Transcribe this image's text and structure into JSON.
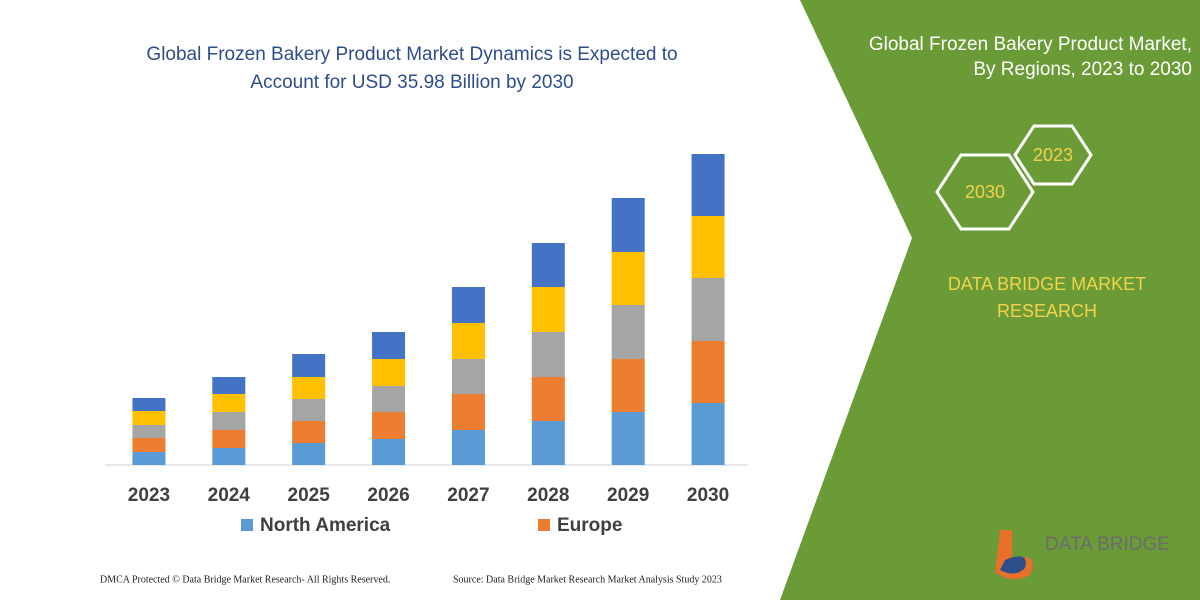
{
  "chart_data": {
    "type": "stacked_bar",
    "title": [
      "Global Frozen Bakery Product Market Dynamics is Expected to",
      "Account for USD 35.98 Billion by 2030"
    ],
    "categories": [
      "2023",
      "2024",
      "2025",
      "2026",
      "2027",
      "2028",
      "2029",
      "2030"
    ],
    "series": [
      {
        "name": "North America",
        "color": "#5b9bd5",
        "values": [
          13,
          17,
          22,
          26,
          35,
          44,
          53,
          62
        ]
      },
      {
        "name": "Europe",
        "color": "#ed7d31",
        "values": [
          14,
          18,
          22,
          27,
          36,
          44,
          53,
          62
        ]
      },
      {
        "color": "#a5a5a5",
        "values": [
          13,
          18,
          22,
          26,
          35,
          45,
          54,
          63
        ]
      },
      {
        "color": "#ffc000",
        "values": [
          14,
          18,
          22,
          27,
          36,
          45,
          53,
          62
        ]
      },
      {
        "color": "#4472c4",
        "values": [
          13,
          17,
          23,
          27,
          36,
          44,
          54,
          62
        ]
      }
    ],
    "ylim": [
      0,
      311
    ]
  },
  "panel": {
    "title": [
      "Global Frozen Bakery Product Market,",
      "By Regions, 2023 to 2030"
    ],
    "hexagons": [
      "2023",
      "2030"
    ],
    "brand": [
      "DATA BRIDGE MARKET",
      "RESEARCH"
    ],
    "logo": "DATA BRIDGE"
  },
  "footer": {
    "rights": "DMCA Protected © Data Bridge Market Research-  All Rights Reserved.",
    "source": "Source: Data Bridge Market Research  Market Analysis Study 2023"
  }
}
